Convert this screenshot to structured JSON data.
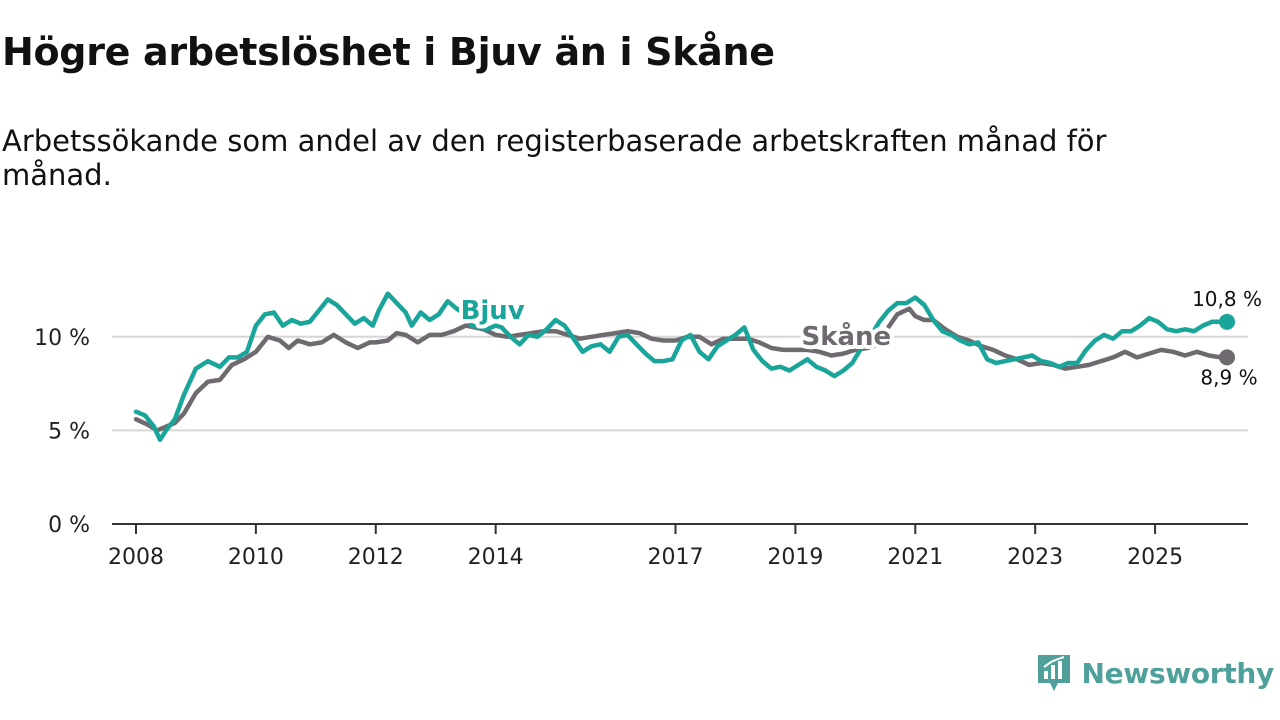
{
  "title": "Högre arbetslöshet i Bjuv än i Skåne",
  "subtitle": "Arbetssökande som andel av den registerbaserade arbetskraften månad för månad.",
  "brand": {
    "name": "Newsworthy",
    "color": "#4fa09a"
  },
  "chart_data": {
    "type": "line",
    "ylim": [
      0,
      12.5
    ],
    "xlim": [
      2007.6,
      2026.55
    ],
    "y_ticks": [
      {
        "value": 0,
        "label": "0 %"
      },
      {
        "value": 5,
        "label": "5 %"
      },
      {
        "value": 10,
        "label": "10 %"
      }
    ],
    "x_ticks": [
      {
        "value": 2008,
        "label": "2008"
      },
      {
        "value": 2010,
        "label": "2010"
      },
      {
        "value": 2012,
        "label": "2012"
      },
      {
        "value": 2014,
        "label": "2014"
      },
      {
        "value": 2017,
        "label": "2017"
      },
      {
        "value": 2019,
        "label": "2019"
      },
      {
        "value": 2021,
        "label": "2021"
      },
      {
        "value": 2023,
        "label": "2023"
      },
      {
        "value": 2025,
        "label": "2025"
      }
    ],
    "series": [
      {
        "name": "Skåne",
        "color": "#6e6a70",
        "end_label": "8,9 %",
        "x": [
          2008.0,
          2008.2,
          2008.35,
          2008.5,
          2008.65,
          2008.8,
          2009.0,
          2009.2,
          2009.4,
          2009.6,
          2009.8,
          2010.0,
          2010.2,
          2010.4,
          2010.55,
          2010.7,
          2010.9,
          2011.1,
          2011.3,
          2011.5,
          2011.7,
          2011.9,
          2012.0,
          2012.2,
          2012.35,
          2012.5,
          2012.7,
          2012.9,
          2013.1,
          2013.3,
          2013.5,
          2013.65,
          2013.8,
          2014.0,
          2014.2,
          2014.4,
          2014.6,
          2014.8,
          2015.0,
          2015.2,
          2015.4,
          2015.6,
          2015.8,
          2016.0,
          2016.2,
          2016.4,
          2016.6,
          2016.8,
          2017.0,
          2017.2,
          2017.4,
          2017.6,
          2017.8,
          2018.0,
          2018.2,
          2018.4,
          2018.6,
          2018.8,
          2019.0,
          2019.2,
          2019.4,
          2019.6,
          2019.8,
          2020.0,
          2020.2,
          2020.4,
          2020.55,
          2020.7,
          2020.9,
          2021.0,
          2021.15,
          2021.3,
          2021.5,
          2021.7,
          2021.9,
          2022.1,
          2022.3,
          2022.5,
          2022.7,
          2022.9,
          2023.1,
          2023.3,
          2023.5,
          2023.7,
          2023.9,
          2024.1,
          2024.3,
          2024.5,
          2024.7,
          2024.9,
          2025.1,
          2025.3,
          2025.5,
          2025.7,
          2025.9,
          2026.1,
          2026.2
        ],
        "y": [
          5.6,
          5.3,
          5.0,
          5.2,
          5.4,
          5.9,
          7.0,
          7.6,
          7.7,
          8.5,
          8.8,
          9.2,
          10.0,
          9.8,
          9.4,
          9.8,
          9.6,
          9.7,
          10.1,
          9.7,
          9.4,
          9.7,
          9.7,
          9.8,
          10.2,
          10.1,
          9.7,
          10.1,
          10.1,
          10.3,
          10.6,
          10.5,
          10.4,
          10.1,
          10.0,
          10.1,
          10.2,
          10.3,
          10.3,
          10.1,
          9.9,
          10.0,
          10.1,
          10.2,
          10.3,
          10.2,
          9.9,
          9.8,
          9.8,
          10.0,
          10.0,
          9.6,
          9.9,
          9.9,
          9.9,
          9.7,
          9.4,
          9.3,
          9.3,
          9.3,
          9.2,
          9.0,
          9.1,
          9.3,
          9.4,
          9.6,
          10.5,
          11.2,
          11.5,
          11.1,
          10.9,
          10.9,
          10.4,
          10.0,
          9.8,
          9.5,
          9.3,
          9.0,
          8.8,
          8.5,
          8.6,
          8.5,
          8.3,
          8.4,
          8.5,
          8.7,
          8.9,
          9.2,
          8.9,
          9.1,
          9.3,
          9.2,
          9.0,
          9.2,
          9.0,
          8.9,
          8.9
        ]
      },
      {
        "name": "Bjuv",
        "color": "#1aa59a",
        "end_label": "10,8 %",
        "x": [
          2008.0,
          2008.15,
          2008.3,
          2008.4,
          2008.5,
          2008.65,
          2008.8,
          2009.0,
          2009.2,
          2009.4,
          2009.55,
          2009.7,
          2009.85,
          2010.0,
          2010.15,
          2010.3,
          2010.45,
          2010.6,
          2010.75,
          2010.9,
          2011.05,
          2011.2,
          2011.35,
          2011.5,
          2011.65,
          2011.8,
          2011.95,
          2012.05,
          2012.2,
          2012.35,
          2012.5,
          2012.6,
          2012.75,
          2012.9,
          2013.05,
          2013.2,
          2013.35,
          2013.5,
          2013.6,
          2013.75,
          2013.85,
          2014.0,
          2014.1,
          2014.25,
          2014.4,
          2014.55,
          2014.7,
          2014.85,
          2015.0,
          2015.15,
          2015.3,
          2015.45,
          2015.6,
          2015.75,
          2015.9,
          2016.05,
          2016.2,
          2016.35,
          2016.5,
          2016.65,
          2016.8,
          2016.95,
          2017.1,
          2017.25,
          2017.4,
          2017.55,
          2017.7,
          2017.85,
          2018.0,
          2018.15,
          2018.3,
          2018.45,
          2018.6,
          2018.75,
          2018.9,
          2019.05,
          2019.2,
          2019.35,
          2019.5,
          2019.65,
          2019.8,
          2019.95,
          2020.1,
          2020.25,
          2020.4,
          2020.55,
          2020.7,
          2020.85,
          2021.0,
          2021.15,
          2021.3,
          2021.45,
          2021.6,
          2021.75,
          2021.9,
          2022.05,
          2022.2,
          2022.35,
          2022.5,
          2022.65,
          2022.8,
          2022.95,
          2023.1,
          2023.25,
          2023.4,
          2023.55,
          2023.7,
          2023.85,
          2024.0,
          2024.15,
          2024.3,
          2024.45,
          2024.6,
          2024.75,
          2024.9,
          2025.05,
          2025.2,
          2025.35,
          2025.5,
          2025.65,
          2025.8,
          2025.95,
          2026.05,
          2026.2
        ],
        "y": [
          6.0,
          5.8,
          5.2,
          4.5,
          5.0,
          5.6,
          6.9,
          8.3,
          8.7,
          8.4,
          8.9,
          8.9,
          9.2,
          10.6,
          11.2,
          11.3,
          10.6,
          10.9,
          10.7,
          10.8,
          11.4,
          12.0,
          11.7,
          11.2,
          10.7,
          11.0,
          10.6,
          11.4,
          12.3,
          11.8,
          11.3,
          10.6,
          11.3,
          10.9,
          11.2,
          11.9,
          11.5,
          11.2,
          10.6,
          10.5,
          10.4,
          10.6,
          10.5,
          10.0,
          9.6,
          10.1,
          10.0,
          10.4,
          10.9,
          10.6,
          9.9,
          9.2,
          9.5,
          9.6,
          9.2,
          10.0,
          10.1,
          9.6,
          9.1,
          8.7,
          8.7,
          8.8,
          9.8,
          10.1,
          9.2,
          8.8,
          9.5,
          9.8,
          10.1,
          10.5,
          9.3,
          8.7,
          8.3,
          8.4,
          8.2,
          8.5,
          8.8,
          8.4,
          8.2,
          7.9,
          8.2,
          8.6,
          9.4,
          10.0,
          10.8,
          11.4,
          11.8,
          11.8,
          12.1,
          11.7,
          10.9,
          10.3,
          10.1,
          9.8,
          9.6,
          9.7,
          8.8,
          8.6,
          8.7,
          8.8,
          8.9,
          9.0,
          8.7,
          8.6,
          8.4,
          8.6,
          8.6,
          9.3,
          9.8,
          10.1,
          9.9,
          10.3,
          10.3,
          10.6,
          11.0,
          10.8,
          10.4,
          10.3,
          10.4,
          10.3,
          10.6,
          10.8,
          10.8,
          10.8
        ]
      }
    ]
  }
}
